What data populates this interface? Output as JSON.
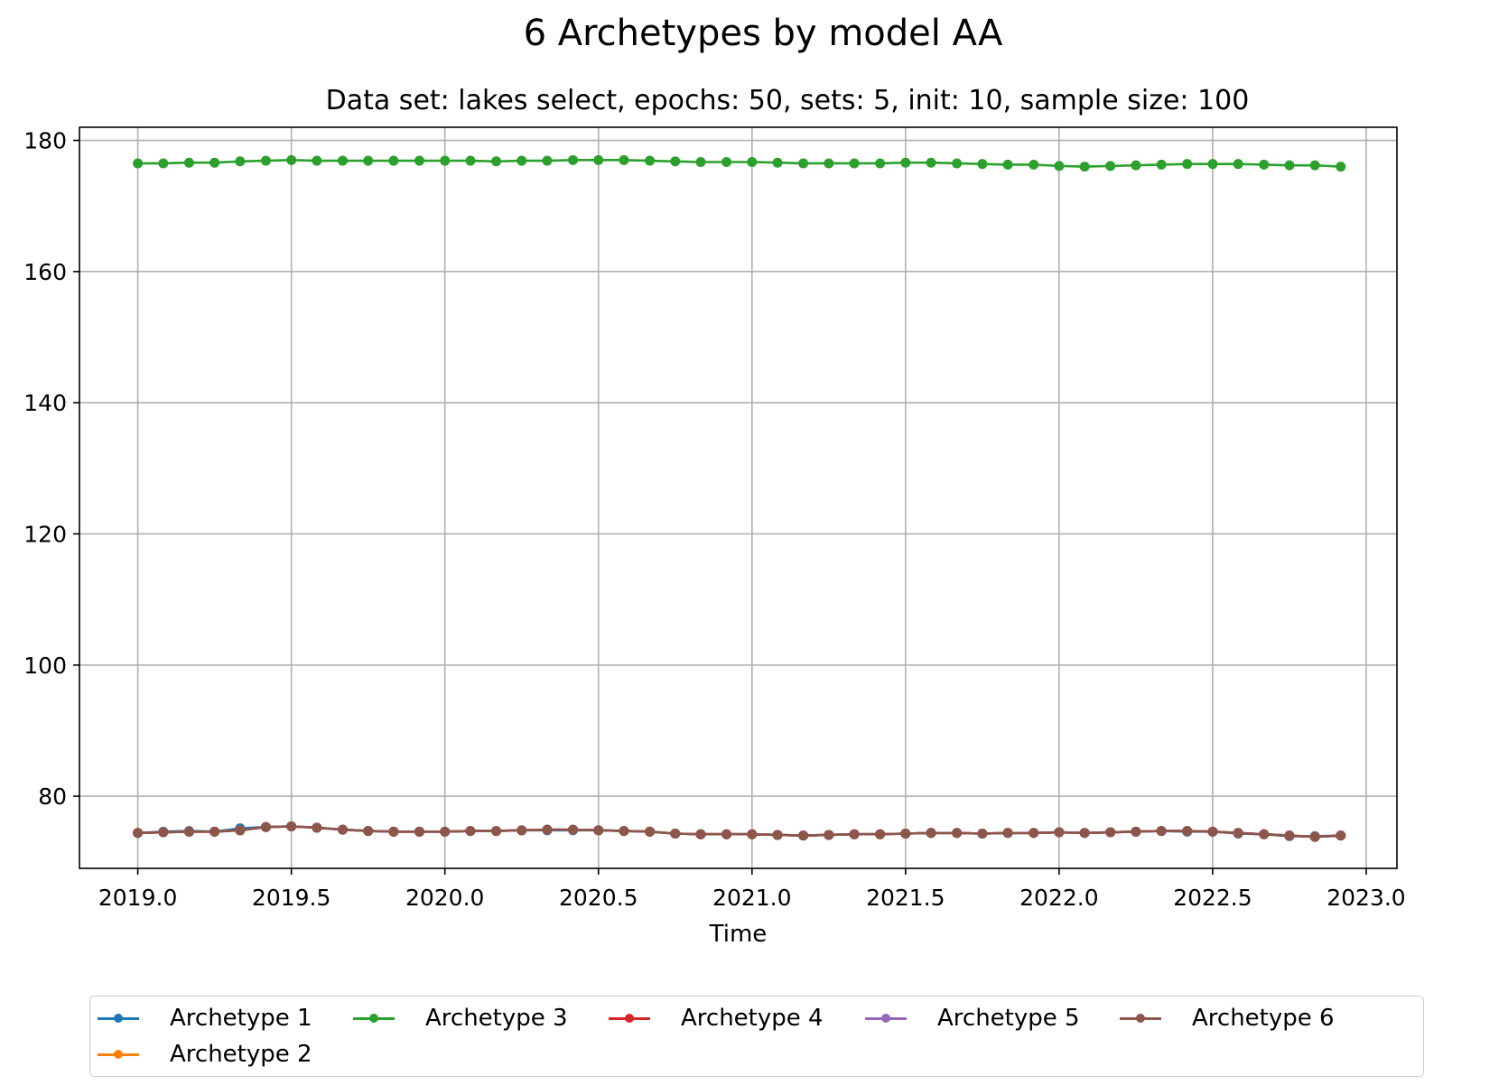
{
  "chart_data": {
    "type": "line",
    "title": "6 Archetypes by model AA",
    "subtitle": "Data set: lakes select, epochs: 50, sets: 5, init: 10, sample size: 100",
    "xlabel": "Time",
    "ylabel": "",
    "xlim": [
      2018.81,
      2023.1
    ],
    "ylim": [
      69,
      182
    ],
    "xticks": [
      "2019.0",
      "2019.5",
      "2020.0",
      "2020.5",
      "2021.0",
      "2021.5",
      "2022.0",
      "2022.5",
      "2023.0"
    ],
    "yticks": [
      "80",
      "100",
      "120",
      "140",
      "160",
      "180"
    ],
    "grid": true,
    "legend_position": "bottom",
    "x": [
      2019.0,
      2019.083,
      2019.167,
      2019.25,
      2019.333,
      2019.417,
      2019.5,
      2019.583,
      2019.667,
      2019.75,
      2019.833,
      2019.917,
      2020.0,
      2020.083,
      2020.167,
      2020.25,
      2020.333,
      2020.417,
      2020.5,
      2020.583,
      2020.667,
      2020.75,
      2020.833,
      2020.917,
      2021.0,
      2021.083,
      2021.167,
      2021.25,
      2021.333,
      2021.417,
      2021.5,
      2021.583,
      2021.667,
      2021.75,
      2021.833,
      2021.917,
      2022.0,
      2022.083,
      2022.167,
      2022.25,
      2022.333,
      2022.417,
      2022.5,
      2022.583,
      2022.667,
      2022.75,
      2022.833,
      2022.917
    ],
    "series": [
      {
        "name": "Archetype 1",
        "color": "#1f77b4",
        "values": [
          74.4,
          74.6,
          74.7,
          74.6,
          75.1,
          75.3,
          75.4,
          75.2,
          74.9,
          74.7,
          74.6,
          74.6,
          74.6,
          74.7,
          74.7,
          74.8,
          74.8,
          74.8,
          74.8,
          74.7,
          74.6,
          74.3,
          74.2,
          74.2,
          74.2,
          74.1,
          74.0,
          74.1,
          74.2,
          74.2,
          74.3,
          74.4,
          74.4,
          74.3,
          74.4,
          74.4,
          74.5,
          74.4,
          74.5,
          74.6,
          74.7,
          74.6,
          74.6,
          74.3,
          74.2,
          73.9,
          73.9,
          74.0
        ]
      },
      {
        "name": "Archetype 2",
        "color": "#ff7f0e",
        "values": [
          74.4,
          74.5,
          74.6,
          74.6,
          74.8,
          75.3,
          75.4,
          75.2,
          74.9,
          74.7,
          74.6,
          74.6,
          74.6,
          74.7,
          74.7,
          74.8,
          74.9,
          74.9,
          74.8,
          74.7,
          74.6,
          74.3,
          74.2,
          74.2,
          74.2,
          74.1,
          74.0,
          74.1,
          74.2,
          74.2,
          74.3,
          74.4,
          74.4,
          74.3,
          74.4,
          74.4,
          74.5,
          74.4,
          74.5,
          74.6,
          74.7,
          74.7,
          74.6,
          74.4,
          74.2,
          74.0,
          73.8,
          74.0
        ]
      },
      {
        "name": "Archetype 3",
        "color": "#2ca02c",
        "values": [
          176.5,
          176.5,
          176.6,
          176.6,
          176.8,
          176.9,
          177.0,
          176.9,
          176.9,
          176.9,
          176.9,
          176.9,
          176.9,
          176.9,
          176.8,
          176.9,
          176.9,
          177.0,
          177.0,
          177.0,
          176.9,
          176.8,
          176.7,
          176.7,
          176.7,
          176.6,
          176.5,
          176.5,
          176.5,
          176.5,
          176.6,
          176.6,
          176.5,
          176.4,
          176.3,
          176.3,
          176.1,
          176.0,
          176.1,
          176.2,
          176.3,
          176.4,
          176.4,
          176.4,
          176.3,
          176.2,
          176.2,
          176.0
        ]
      },
      {
        "name": "Archetype 4",
        "color": "#d62728",
        "values": [
          74.4,
          74.5,
          74.6,
          74.6,
          74.8,
          75.3,
          75.4,
          75.2,
          74.9,
          74.7,
          74.6,
          74.6,
          74.6,
          74.7,
          74.7,
          74.8,
          74.9,
          74.9,
          74.8,
          74.7,
          74.6,
          74.3,
          74.2,
          74.2,
          74.2,
          74.1,
          74.0,
          74.1,
          74.2,
          74.2,
          74.3,
          74.4,
          74.4,
          74.3,
          74.4,
          74.4,
          74.5,
          74.4,
          74.5,
          74.6,
          74.7,
          74.7,
          74.6,
          74.4,
          74.2,
          74.0,
          73.8,
          74.0
        ]
      },
      {
        "name": "Archetype 5",
        "color": "#9467bd",
        "values": [
          74.4,
          74.5,
          74.6,
          74.6,
          74.8,
          75.3,
          75.4,
          75.2,
          74.9,
          74.7,
          74.6,
          74.6,
          74.6,
          74.7,
          74.7,
          74.8,
          74.9,
          74.9,
          74.8,
          74.7,
          74.6,
          74.3,
          74.2,
          74.2,
          74.2,
          74.1,
          74.0,
          74.1,
          74.2,
          74.2,
          74.3,
          74.4,
          74.4,
          74.3,
          74.4,
          74.4,
          74.5,
          74.4,
          74.5,
          74.6,
          74.7,
          74.7,
          74.6,
          74.4,
          74.2,
          74.0,
          73.8,
          74.0
        ]
      },
      {
        "name": "Archetype 6",
        "color": "#8c564b",
        "values": [
          74.4,
          74.5,
          74.6,
          74.6,
          74.8,
          75.3,
          75.4,
          75.2,
          74.9,
          74.7,
          74.6,
          74.6,
          74.6,
          74.7,
          74.7,
          74.8,
          74.9,
          74.9,
          74.8,
          74.7,
          74.6,
          74.3,
          74.2,
          74.2,
          74.2,
          74.1,
          74.0,
          74.1,
          74.2,
          74.2,
          74.3,
          74.4,
          74.4,
          74.3,
          74.4,
          74.4,
          74.5,
          74.4,
          74.5,
          74.6,
          74.7,
          74.7,
          74.6,
          74.4,
          74.2,
          74.0,
          73.8,
          74.0
        ]
      }
    ]
  }
}
